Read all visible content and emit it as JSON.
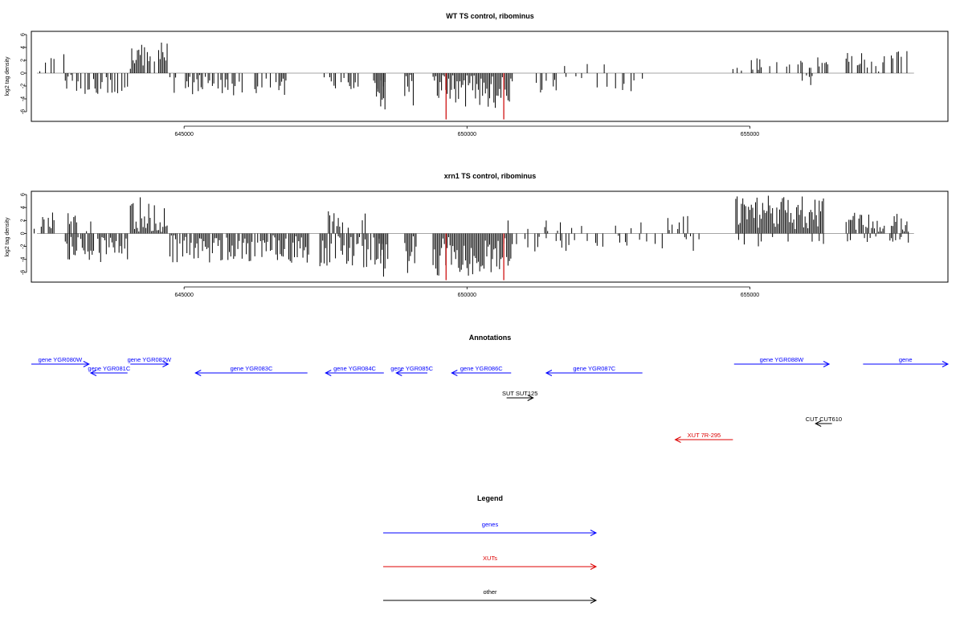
{
  "colors": {
    "gene": "#0000ff",
    "xut": "#dd0000",
    "other": "#000000",
    "bar": "#000000",
    "highlight": "#cc0000",
    "baseline": "#888888"
  },
  "chart_data": [
    {
      "type": "bar",
      "title": "WT TS control, ribominus",
      "ylabel": "log2 tag density",
      "xlim": [
        642300,
        658500
      ],
      "ylim": [
        -7.5,
        6.5
      ],
      "yticks": [
        -6,
        -4,
        -2,
        0,
        2,
        4,
        6
      ],
      "xticks": [
        645000,
        650000,
        655000
      ],
      "grid": false,
      "max_abs_value": 4.8,
      "min_value": -7.2,
      "highlight_positions": [
        649630,
        650650
      ]
    },
    {
      "type": "bar",
      "title": "xrn1 TS control, ribominus",
      "ylabel": "log2 tag density",
      "xlim": [
        642300,
        658500
      ],
      "ylim": [
        -7.5,
        6.5
      ],
      "yticks": [
        -6,
        -4,
        -2,
        0,
        2,
        4,
        6
      ],
      "xticks": [
        645000,
        650000,
        655000
      ],
      "grid": false,
      "max_abs_value": 6.0,
      "min_value": -7.2,
      "highlight_positions": [
        649630,
        650650
      ]
    }
  ],
  "annotations": {
    "title": "Annotations",
    "features": [
      {
        "label": "gene YGR080W",
        "kind": "gene",
        "start": 642300,
        "end": 643320,
        "strand": "+",
        "row": 0
      },
      {
        "label": "gene YGR081C",
        "kind": "gene",
        "start": 643350,
        "end": 644000,
        "strand": "-",
        "row": 1
      },
      {
        "label": "gene YGR082W",
        "kind": "gene",
        "start": 644050,
        "end": 644720,
        "strand": "+",
        "row": 0
      },
      {
        "label": "gene YGR083C",
        "kind": "gene",
        "start": 645200,
        "end": 647180,
        "strand": "-",
        "row": 1
      },
      {
        "label": "gene YGR084C",
        "kind": "gene",
        "start": 647500,
        "end": 648530,
        "strand": "-",
        "row": 1
      },
      {
        "label": "gene YGR085C",
        "kind": "gene",
        "start": 648750,
        "end": 649300,
        "strand": "-",
        "row": 1
      },
      {
        "label": "gene YGR086C",
        "kind": "gene",
        "start": 649730,
        "end": 650780,
        "strand": "-",
        "row": 1
      },
      {
        "label": "gene YGR087C",
        "kind": "gene",
        "start": 651400,
        "end": 653100,
        "strand": "-",
        "row": 1
      },
      {
        "label": "gene YGR088W",
        "kind": "gene",
        "start": 654720,
        "end": 656400,
        "strand": "+",
        "row": 0
      },
      {
        "label": "gene",
        "kind": "gene",
        "start": 657000,
        "end": 658500,
        "strand": "+",
        "row": 0
      },
      {
        "label": "SUT SUT125",
        "kind": "other",
        "start": 650700,
        "end": 651170,
        "strand": "+",
        "row": 2
      },
      {
        "label": "CUT CUT610",
        "kind": "other",
        "start": 656160,
        "end": 656450,
        "strand": "-",
        "row": 3
      },
      {
        "label": "XUT 7R-295",
        "kind": "xut",
        "start": 653680,
        "end": 654700,
        "strand": "-",
        "row": 4
      }
    ]
  },
  "legend": {
    "title": "Legend",
    "items": [
      {
        "label": "genes",
        "kind": "gene"
      },
      {
        "label": "XUTs",
        "kind": "xut"
      },
      {
        "label": "other",
        "kind": "other"
      }
    ]
  }
}
